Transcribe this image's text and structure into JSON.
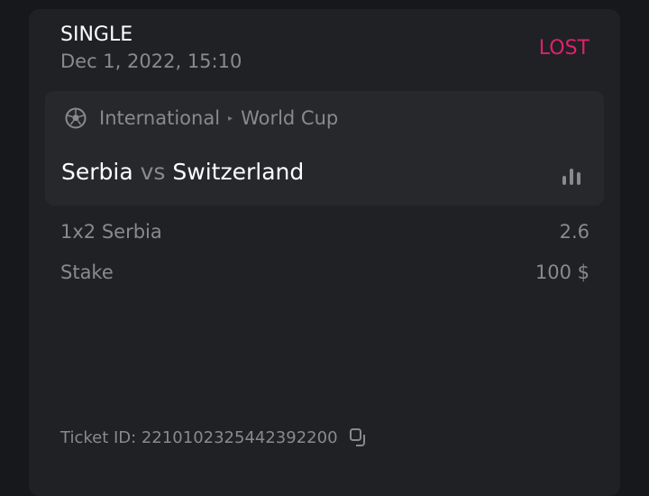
{
  "bet": {
    "type": "SINGLE",
    "date": "Dec 1, 2022, 15:10",
    "status": "LOST",
    "status_color": "#e0206e"
  },
  "event": {
    "sport_icon": "soccer-ball-icon",
    "category": "International",
    "league": "World Cup",
    "separator": "▸",
    "home": "Serbia",
    "vs": "vs",
    "away": "Switzerland",
    "stats_icon": "bar-chart-icon"
  },
  "selection": {
    "label": "1x2 Serbia",
    "odds": "2.6"
  },
  "stake": {
    "label": "Stake",
    "value": "100 $"
  },
  "ticket": {
    "text": "Ticket ID: 2210102325442392200",
    "copy_icon": "copy-icon"
  }
}
